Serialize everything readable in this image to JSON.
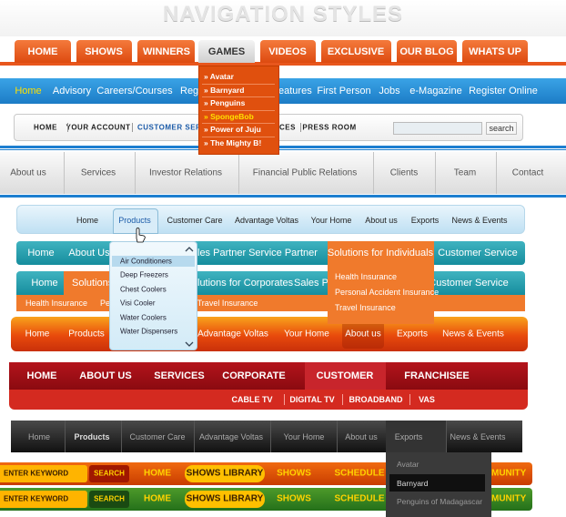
{
  "title": "NAVIGATION STYLES",
  "nav1": {
    "items": [
      "HOME",
      "SHOWS",
      "WINNERS",
      "GAMES",
      "VIDEOS",
      "EXCLUSIVE",
      "OUR BLOG",
      "WHATS UP"
    ],
    "dropdown": [
      "» Avatar",
      "» Barnyard",
      "» Penguins",
      "» SpongeBob",
      "» Power of Juju",
      "» The Mighty B!"
    ]
  },
  "nav2": {
    "items": [
      "Home",
      "Advisory",
      "Careers/Courses",
      "Regu",
      "eatures",
      "First Person",
      "Jobs",
      "e-Magazine",
      "Register Online"
    ]
  },
  "nav3": {
    "items": [
      "HOME",
      "YOUR ACCOUNT",
      "CUSTOMER SERVI",
      "CES",
      "PRESS ROOM"
    ],
    "search": "search"
  },
  "nav4": {
    "items": [
      "About us",
      "Services",
      "Investor Relations",
      "Financial Public Relations",
      "Clients",
      "Team",
      "Contact"
    ]
  },
  "nav5": {
    "items": [
      "Home",
      "Products",
      "Customer Care",
      "Advantage Voltas",
      "Your Home",
      "About us",
      "Exports",
      "News & Events"
    ],
    "dropdown": [
      "Air Conditioners",
      "Deep Freezers",
      "Chest Coolers",
      "Visi Cooler",
      "Water Coolers",
      "Water Dispensers"
    ]
  },
  "nav6": {
    "items": [
      "Home",
      "About Us",
      "les Partner",
      "Service Partner",
      "Solutions for Individuals",
      "Customer Service"
    ],
    "dropdown": [
      "Health Insurance",
      "Personal Accident Insurance",
      "Travel Insurance"
    ]
  },
  "nav7": {
    "items": [
      "Home",
      "Solutions f",
      "lutions for Corporates",
      "Sales Pa",
      "Customer Service"
    ],
    "sub": [
      "Health Insurance",
      "Pe",
      "Travel Insurance"
    ]
  },
  "nav8": {
    "items": [
      "Home",
      "Products",
      "Advantage Voltas",
      "Your Home",
      "About us",
      "Exports",
      "News & Events"
    ]
  },
  "nav9": {
    "items": [
      "HOME",
      "ABOUT US",
      "SERVICES",
      "CORPORATE",
      "CUSTOMER",
      "FRANCHISEE"
    ],
    "sub": [
      "CABLE TV",
      "DIGITAL TV",
      "BROADBAND",
      "VAS"
    ]
  },
  "nav10": {
    "items": [
      "Home",
      "Products",
      "Customer Care",
      "Advantage Voltas",
      "Your Home",
      "About us",
      "Exports",
      "News & Events"
    ],
    "dropdown": [
      "Avatar",
      "Barnyard",
      "Penguins of Madagascar"
    ]
  },
  "nav11": {
    "keyword": "ENTER KEYWORD",
    "search": "SEARCH",
    "items": [
      "HOME",
      "SHOWS LIBRARY",
      "SHOWS",
      "SCHEDULE",
      "MUNITY"
    ]
  },
  "nav12": {
    "keyword": "ENTER KEYWORD",
    "search": "SEARCH",
    "items": [
      "HOME",
      "SHOWS LIBRARY",
      "SHOWS",
      "SCHEDULE",
      "MUNITY"
    ]
  }
}
